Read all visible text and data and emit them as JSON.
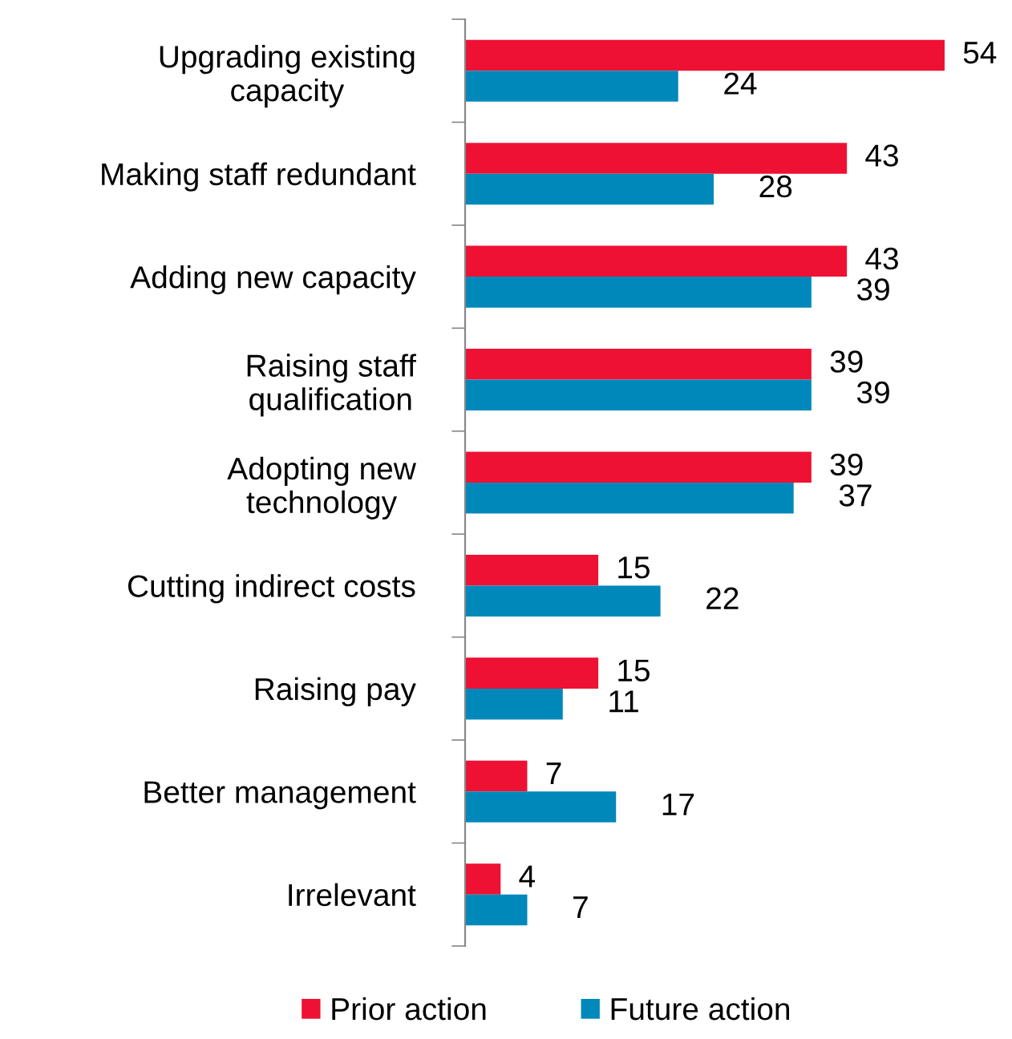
{
  "chart_data": {
    "type": "bar",
    "orientation": "horizontal",
    "data_labels": true,
    "legend": "bottom",
    "grid": false,
    "categories": [
      "Upgrading existing\ncapacity",
      "Making staff redundant",
      "Adding new capacity",
      "Raising staff\nqualification",
      "Adopting new\ntechnology",
      "Cutting indirect costs",
      "Raising pay",
      "Better management",
      "Irrelevant"
    ],
    "series": [
      {
        "name": "Prior action",
        "color": "#ee1133",
        "values": [
          54,
          43,
          43,
          39,
          39,
          15,
          15,
          7,
          4
        ]
      },
      {
        "name": "Future action",
        "color": "#0088bb",
        "values": [
          24,
          28,
          39,
          39,
          37,
          22,
          11,
          17,
          7
        ]
      }
    ]
  }
}
